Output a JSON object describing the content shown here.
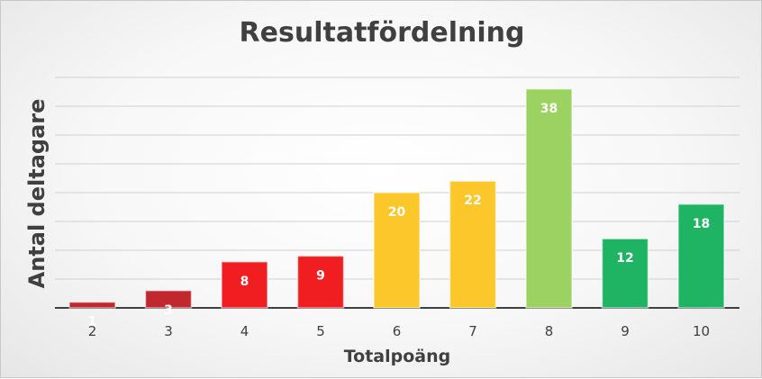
{
  "chart_data": {
    "type": "bar",
    "title": "Resultatfördelning",
    "xlabel": "Totalpoäng",
    "ylabel": "Antal deltagare",
    "categories": [
      "2",
      "3",
      "4",
      "5",
      "6",
      "7",
      "8",
      "9",
      "10"
    ],
    "values": [
      1,
      3,
      8,
      9,
      20,
      22,
      38,
      12,
      18
    ],
    "colors": [
      "#C0282D",
      "#C0282D",
      "#F01E20",
      "#F01E20",
      "#FCC72B",
      "#FCC72B",
      "#9BD261",
      "#1FB463",
      "#1FB463"
    ],
    "ylim": [
      0,
      40
    ],
    "grid": true,
    "legend": "none",
    "data_labels": true
  }
}
